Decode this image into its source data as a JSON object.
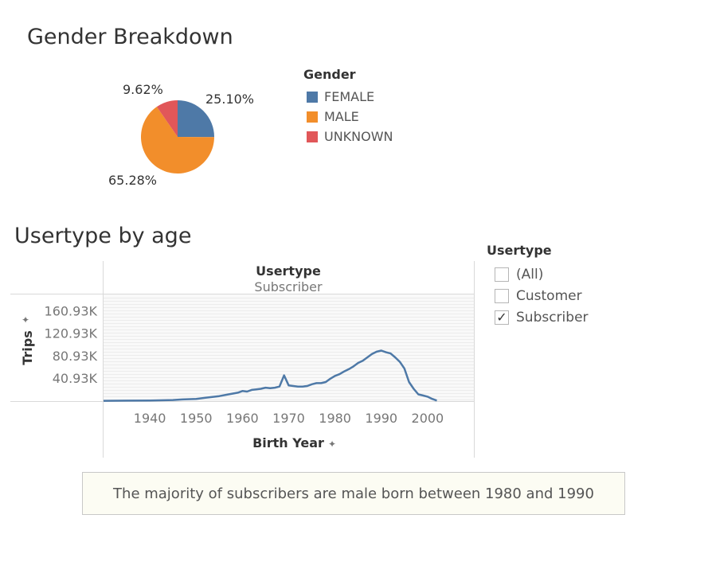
{
  "gender_section": {
    "title": "Gender Breakdown",
    "legend_title": "Gender",
    "legend": [
      {
        "label": "FEMALE",
        "color": "#4e79a7"
      },
      {
        "label": "MALE",
        "color": "#f28e2b"
      },
      {
        "label": "UNKNOWN",
        "color": "#e15759"
      }
    ]
  },
  "usertype_section": {
    "title": "Usertype by age",
    "header_title": "Usertype",
    "header_value": "Subscriber",
    "ylabel": "Trips",
    "xlabel": "Birth Year"
  },
  "filter": {
    "title": "Usertype",
    "options": [
      {
        "label": "(All)",
        "checked": false
      },
      {
        "label": "Customer",
        "checked": false
      },
      {
        "label": "Subscriber",
        "checked": true
      }
    ]
  },
  "annotation": "The majority of subscribers are male born between 1980 and 1990",
  "chart_data": [
    {
      "type": "pie",
      "title": "Gender Breakdown",
      "legend_title": "Gender",
      "categories": [
        "FEMALE",
        "MALE",
        "UNKNOWN"
      ],
      "values": [
        25.1,
        65.28,
        9.62
      ],
      "labels": [
        "25.10%",
        "65.28%",
        "9.62%"
      ],
      "colors": [
        "#4e79a7",
        "#f28e2b",
        "#e15759"
      ],
      "legend_placement": "right"
    },
    {
      "type": "line",
      "title": "Usertype by age",
      "panel": "Subscriber",
      "xlabel": "Birth Year",
      "ylabel": "Trips",
      "xlim": [
        1930,
        2010
      ],
      "xticks": [
        1940,
        1950,
        1960,
        1970,
        1980,
        1990,
        2000
      ],
      "ylim": [
        0,
        190000
      ],
      "yticks": [
        40930,
        80930,
        120930,
        160930
      ],
      "ytick_labels": [
        "40.93K",
        "80.93K",
        "120.93K",
        "160.93K"
      ],
      "grid": true,
      "color": "#4e79a7",
      "series": [
        {
          "x": [
            1930,
            1935,
            1940,
            1945,
            1947,
            1950,
            1952,
            1955,
            1957,
            1959,
            1960,
            1961,
            1962,
            1963,
            1964,
            1965,
            1966,
            1967,
            1968,
            1969,
            1970,
            1971,
            1972,
            1973,
            1974,
            1975,
            1976,
            1977,
            1978,
            1979,
            1980,
            1981,
            1982,
            1983,
            1984,
            1985,
            1986,
            1987,
            1988,
            1989,
            1990,
            1991,
            1992,
            1993,
            1994,
            1995,
            1996,
            1997,
            1998,
            1999,
            2000,
            2001,
            2002
          ],
          "y": [
            500,
            800,
            1200,
            2000,
            3000,
            4000,
            6000,
            9000,
            12000,
            15000,
            18000,
            17000,
            20000,
            21000,
            22000,
            24000,
            23000,
            24000,
            26000,
            46000,
            28000,
            27000,
            26000,
            26000,
            27000,
            30000,
            32000,
            32000,
            34000,
            40000,
            45000,
            48000,
            53000,
            57000,
            62000,
            68000,
            72000,
            78000,
            84000,
            88000,
            90000,
            87000,
            85000,
            78000,
            70000,
            58000,
            34000,
            22000,
            12000,
            10000,
            8000,
            4000,
            1000
          ]
        }
      ]
    }
  ]
}
